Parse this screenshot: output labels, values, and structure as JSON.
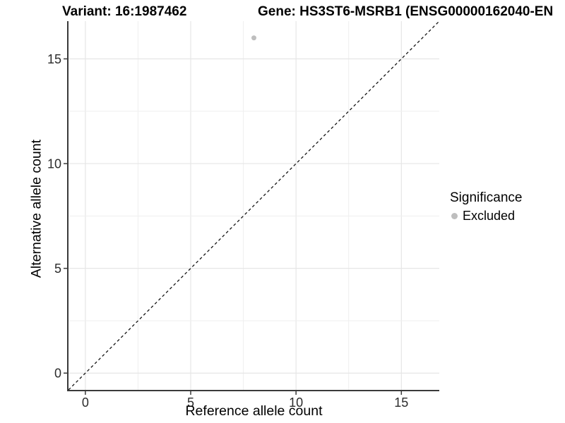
{
  "chart_data": {
    "type": "scatter",
    "title_left": "Variant: 16:1987462",
    "title_right": "Gene: HS3ST6-MSRB1 (ENSG00000162040-EN",
    "xlabel": "Reference allele count",
    "ylabel": "Alternative allele count",
    "xlim": [
      -0.8,
      16.8
    ],
    "ylim": [
      -0.8,
      16.8
    ],
    "x_ticks": [
      0,
      5,
      10,
      15
    ],
    "y_ticks": [
      0,
      5,
      10,
      15
    ],
    "grid": true,
    "grid_step": 2.5,
    "points": [
      {
        "x": 8,
        "y": 16,
        "series": "Excluded"
      }
    ],
    "identity_line": {
      "style": "dashed",
      "slope": 1,
      "intercept": 0
    },
    "legend": {
      "title": "Significance",
      "position": "right",
      "items": [
        {
          "label": "Excluded",
          "color": "#bebebe",
          "marker": "circle"
        }
      ]
    },
    "colors": {
      "background": "#ffffff",
      "grid_major": "#e6e6e6",
      "grid_minor": "#efefef",
      "axis_line": "#3a3a3a",
      "tick_text": "#2b2b2b",
      "point": "#bebebe",
      "identity_line": "#141414"
    }
  }
}
